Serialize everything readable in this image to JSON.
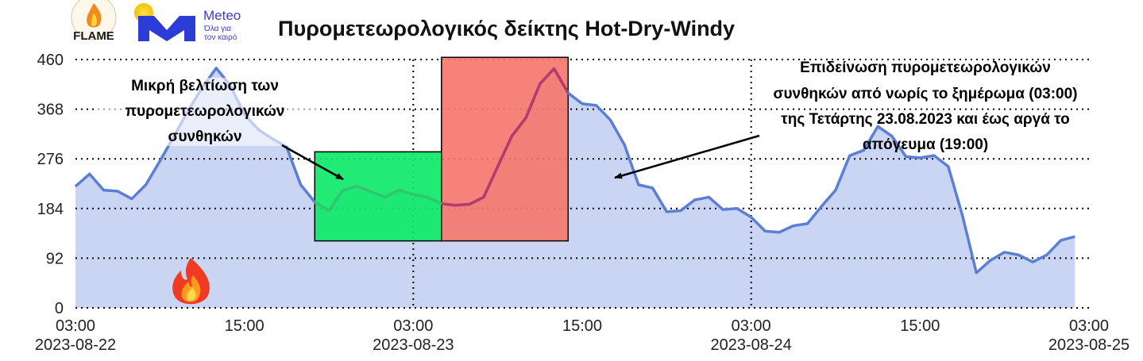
{
  "logos": {
    "flame_text": "FLAME",
    "meteo_name": "Meteo",
    "meteo_tagline_line1": "Όλα για",
    "meteo_tagline_line2": "τον καιρό"
  },
  "chart_data": {
    "type": "area",
    "title": "Πυρομετεωρολογικός δείκτης Hot-Dry-Windy",
    "xlabel": "",
    "ylabel": "",
    "ylim": [
      0,
      460
    ],
    "yticks": [
      0,
      92,
      184,
      276,
      368,
      460
    ],
    "xlim": [
      "2023-08-22 03:00",
      "2023-08-25 03:00"
    ],
    "xticks": [
      {
        "line1": "03:00",
        "line2": "2023-08-22"
      },
      {
        "line1": "15:00",
        "line2": ""
      },
      {
        "line1": "03:00",
        "line2": "2023-08-23"
      },
      {
        "line1": "15:00",
        "line2": ""
      },
      {
        "line1": "03:00",
        "line2": "2023-08-24"
      },
      {
        "line1": "15:00",
        "line2": ""
      },
      {
        "line1": "03:00",
        "line2": "2023-08-25"
      }
    ],
    "grid": "dotted",
    "colors": {
      "line": "#5b7fd6",
      "fill": "#c9d5f2",
      "green_box": "#11ea6a",
      "red_box": "#f47a70"
    },
    "series": [
      {
        "values": [
          {
            "x": "2023-08-22 03:00",
            "y": 225
          },
          {
            "x": "2023-08-22 04:00",
            "y": 248
          },
          {
            "x": "2023-08-22 05:00",
            "y": 218
          },
          {
            "x": "2023-08-22 06:00",
            "y": 216
          },
          {
            "x": "2023-08-22 07:00",
            "y": 202
          },
          {
            "x": "2023-08-22 08:00",
            "y": 228
          },
          {
            "x": "2023-08-22 09:00",
            "y": 272
          },
          {
            "x": "2023-08-22 10:00",
            "y": 318
          },
          {
            "x": "2023-08-22 11:00",
            "y": 365
          },
          {
            "x": "2023-08-22 12:00",
            "y": 408
          },
          {
            "x": "2023-08-22 13:00",
            "y": 444
          },
          {
            "x": "2023-08-22 14:00",
            "y": 412
          },
          {
            "x": "2023-08-22 15:00",
            "y": 358
          },
          {
            "x": "2023-08-22 16:00",
            "y": 330
          },
          {
            "x": "2023-08-22 17:00",
            "y": 313
          },
          {
            "x": "2023-08-22 18:00",
            "y": 298
          },
          {
            "x": "2023-08-22 19:00",
            "y": 228
          },
          {
            "x": "2023-08-22 20:00",
            "y": 196
          },
          {
            "x": "2023-08-22 21:00",
            "y": 180
          },
          {
            "x": "2023-08-22 22:00",
            "y": 218
          },
          {
            "x": "2023-08-22 23:00",
            "y": 225
          },
          {
            "x": "2023-08-23 00:00",
            "y": 215
          },
          {
            "x": "2023-08-23 01:00",
            "y": 205
          },
          {
            "x": "2023-08-23 02:00",
            "y": 218
          },
          {
            "x": "2023-08-23 03:00",
            "y": 210
          },
          {
            "x": "2023-08-23 04:00",
            "y": 205
          },
          {
            "x": "2023-08-23 05:00",
            "y": 193
          },
          {
            "x": "2023-08-23 06:00",
            "y": 190
          },
          {
            "x": "2023-08-23 07:00",
            "y": 192
          },
          {
            "x": "2023-08-23 08:00",
            "y": 205
          },
          {
            "x": "2023-08-23 09:00",
            "y": 262
          },
          {
            "x": "2023-08-23 10:00",
            "y": 318
          },
          {
            "x": "2023-08-23 11:00",
            "y": 352
          },
          {
            "x": "2023-08-23 12:00",
            "y": 415
          },
          {
            "x": "2023-08-23 13:00",
            "y": 443
          },
          {
            "x": "2023-08-23 14:00",
            "y": 398
          },
          {
            "x": "2023-08-23 15:00",
            "y": 378
          },
          {
            "x": "2023-08-23 16:00",
            "y": 375
          },
          {
            "x": "2023-08-23 17:00",
            "y": 348
          },
          {
            "x": "2023-08-23 18:00",
            "y": 302
          },
          {
            "x": "2023-08-23 19:00",
            "y": 228
          },
          {
            "x": "2023-08-23 20:00",
            "y": 222
          },
          {
            "x": "2023-08-23 21:00",
            "y": 178
          },
          {
            "x": "2023-08-23 22:00",
            "y": 180
          },
          {
            "x": "2023-08-23 23:00",
            "y": 200
          },
          {
            "x": "2023-08-24 00:00",
            "y": 205
          },
          {
            "x": "2023-08-24 01:00",
            "y": 182
          },
          {
            "x": "2023-08-24 02:00",
            "y": 184
          },
          {
            "x": "2023-08-24 03:00",
            "y": 168
          },
          {
            "x": "2023-08-24 04:00",
            "y": 142
          },
          {
            "x": "2023-08-24 05:00",
            "y": 140
          },
          {
            "x": "2023-08-24 06:00",
            "y": 152
          },
          {
            "x": "2023-08-24 07:00",
            "y": 156
          },
          {
            "x": "2023-08-24 08:00",
            "y": 188
          },
          {
            "x": "2023-08-24 09:00",
            "y": 218
          },
          {
            "x": "2023-08-24 10:00",
            "y": 282
          },
          {
            "x": "2023-08-24 11:00",
            "y": 292
          },
          {
            "x": "2023-08-24 12:00",
            "y": 336
          },
          {
            "x": "2023-08-24 13:00",
            "y": 318
          },
          {
            "x": "2023-08-24 14:00",
            "y": 280
          },
          {
            "x": "2023-08-24 15:00",
            "y": 278
          },
          {
            "x": "2023-08-24 16:00",
            "y": 282
          },
          {
            "x": "2023-08-24 17:00",
            "y": 262
          },
          {
            "x": "2023-08-24 18:00",
            "y": 172
          },
          {
            "x": "2023-08-24 19:00",
            "y": 65
          },
          {
            "x": "2023-08-24 20:00",
            "y": 88
          },
          {
            "x": "2023-08-24 21:00",
            "y": 103
          },
          {
            "x": "2023-08-24 22:00",
            "y": 98
          },
          {
            "x": "2023-08-24 23:00",
            "y": 85
          },
          {
            "x": "2023-08-25 00:00",
            "y": 98
          },
          {
            "x": "2023-08-25 01:00",
            "y": 125
          },
          {
            "x": "2023-08-25 02:00",
            "y": 132
          }
        ]
      }
    ],
    "highlights": [
      {
        "name": "green",
        "x_start": "2023-08-22 20:00",
        "x_end": "2023-08-23 05:00",
        "y_start": 124,
        "y_end": 289
      },
      {
        "name": "red",
        "x_start": "2023-08-23 05:00",
        "x_end": "2023-08-23 14:00",
        "y_start": 124,
        "y_end": 464
      }
    ],
    "annotations": [
      {
        "name": "small-improvement",
        "lines": [
          "Μικρή βελτίωση των",
          "πυρομετεωρολογικών",
          "συνθηκών"
        ]
      },
      {
        "name": "worsening",
        "lines": [
          "Επιδείνωση πυρομετεωρολογικών",
          "συνθηκών από νωρίς το ξημέρωμα (03:00)",
          "της Τετάρτης 23.08.2023 και έως αργά το",
          "απόγευμα (19:00)"
        ]
      }
    ]
  }
}
